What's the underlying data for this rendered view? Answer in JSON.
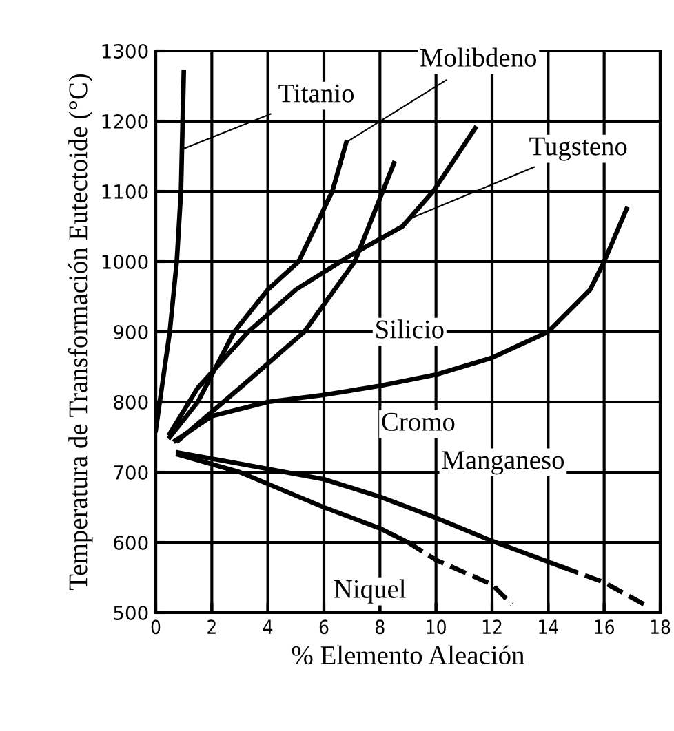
{
  "chart_data": {
    "type": "line",
    "xlabel": "% Elemento Aleación",
    "ylabel": "Temperatura de Transformación Eutectoide (°C)",
    "xlim": [
      0,
      18
    ],
    "xticks": [
      0,
      2,
      4,
      6,
      8,
      10,
      12,
      14,
      16,
      18
    ],
    "ylim": [
      500,
      1300
    ],
    "yticks": [
      500,
      600,
      700,
      800,
      900,
      1000,
      1100,
      1200,
      1300
    ],
    "grid": true,
    "marker": "none",
    "series": [
      {
        "color": "#000000",
        "line_style": "solid",
        "x": [
          0,
          0.5,
          0.75,
          0.9,
          1.0
        ],
        "values": [
          760,
          900,
          1000,
          1100,
          1270
        ]
      },
      {
        "color": "#000000",
        "line_style": "solid",
        "x": [
          0.5,
          1.5,
          2.8,
          4,
          5.1,
          6.3,
          6.8
        ],
        "values": [
          750,
          800,
          900,
          960,
          1000,
          1100,
          1170
        ]
      },
      {
        "color": "#000000",
        "line_style": "solid",
        "x": [
          0.5,
          1.5,
          3.3,
          5,
          7,
          8.8,
          9.9,
          11.4
        ],
        "values": [
          755,
          820,
          900,
          960,
          1010,
          1050,
          1100,
          1190
        ]
      },
      {
        "color": "#000000",
        "line_style": "solid",
        "x": [
          0.8,
          3,
          5.3,
          7.1,
          8.1,
          8.5
        ],
        "values": [
          745,
          820,
          900,
          1000,
          1100,
          1140
        ]
      },
      {
        "color": "#000000",
        "line_style": "solid",
        "x": [
          0.7,
          2,
          4,
          6,
          8,
          10,
          12,
          14,
          15.5,
          16,
          16.8
        ],
        "values": [
          745,
          780,
          800,
          810,
          823,
          839,
          863,
          900,
          960,
          1000,
          1075
        ]
      },
      {
        "color": "#000000",
        "line_style": "solid",
        "x": [
          0.8,
          3,
          6,
          8,
          10,
          12,
          14.5
        ],
        "values": [
          728,
          712,
          690,
          665,
          635,
          602,
          565
        ]
      },
      {
        "color": "#000000",
        "line_style": "dashed",
        "x": [
          14.5,
          16,
          17.6
        ],
        "values": [
          565,
          543,
          508
        ]
      },
      {
        "color": "#000000",
        "line_style": "solid",
        "x": [
          0.8,
          3,
          6,
          8,
          9
        ],
        "values": [
          725,
          700,
          650,
          620,
          600
        ]
      },
      {
        "color": "#000000",
        "line_style": "dashed",
        "x": [
          9,
          10,
          12,
          12.7
        ],
        "values": [
          600,
          575,
          540,
          512
        ]
      }
    ],
    "annotations": [
      {
        "text": "Titanio",
        "x": 0.95,
        "y": 1160
      },
      {
        "text": "Molibdeno",
        "x": 6.8,
        "y": 1170
      },
      {
        "text": "Tugsteno",
        "x": 9.0,
        "y": 1060
      },
      {
        "text": "Silicio",
        "x": 5.3,
        "y": 900
      },
      {
        "text": "Cromo",
        "x": 8,
        "y": 823
      },
      {
        "text": "Manganeso",
        "x": 10,
        "y": 635
      },
      {
        "text": "Niquel",
        "x": 6,
        "y": 650
      }
    ]
  }
}
